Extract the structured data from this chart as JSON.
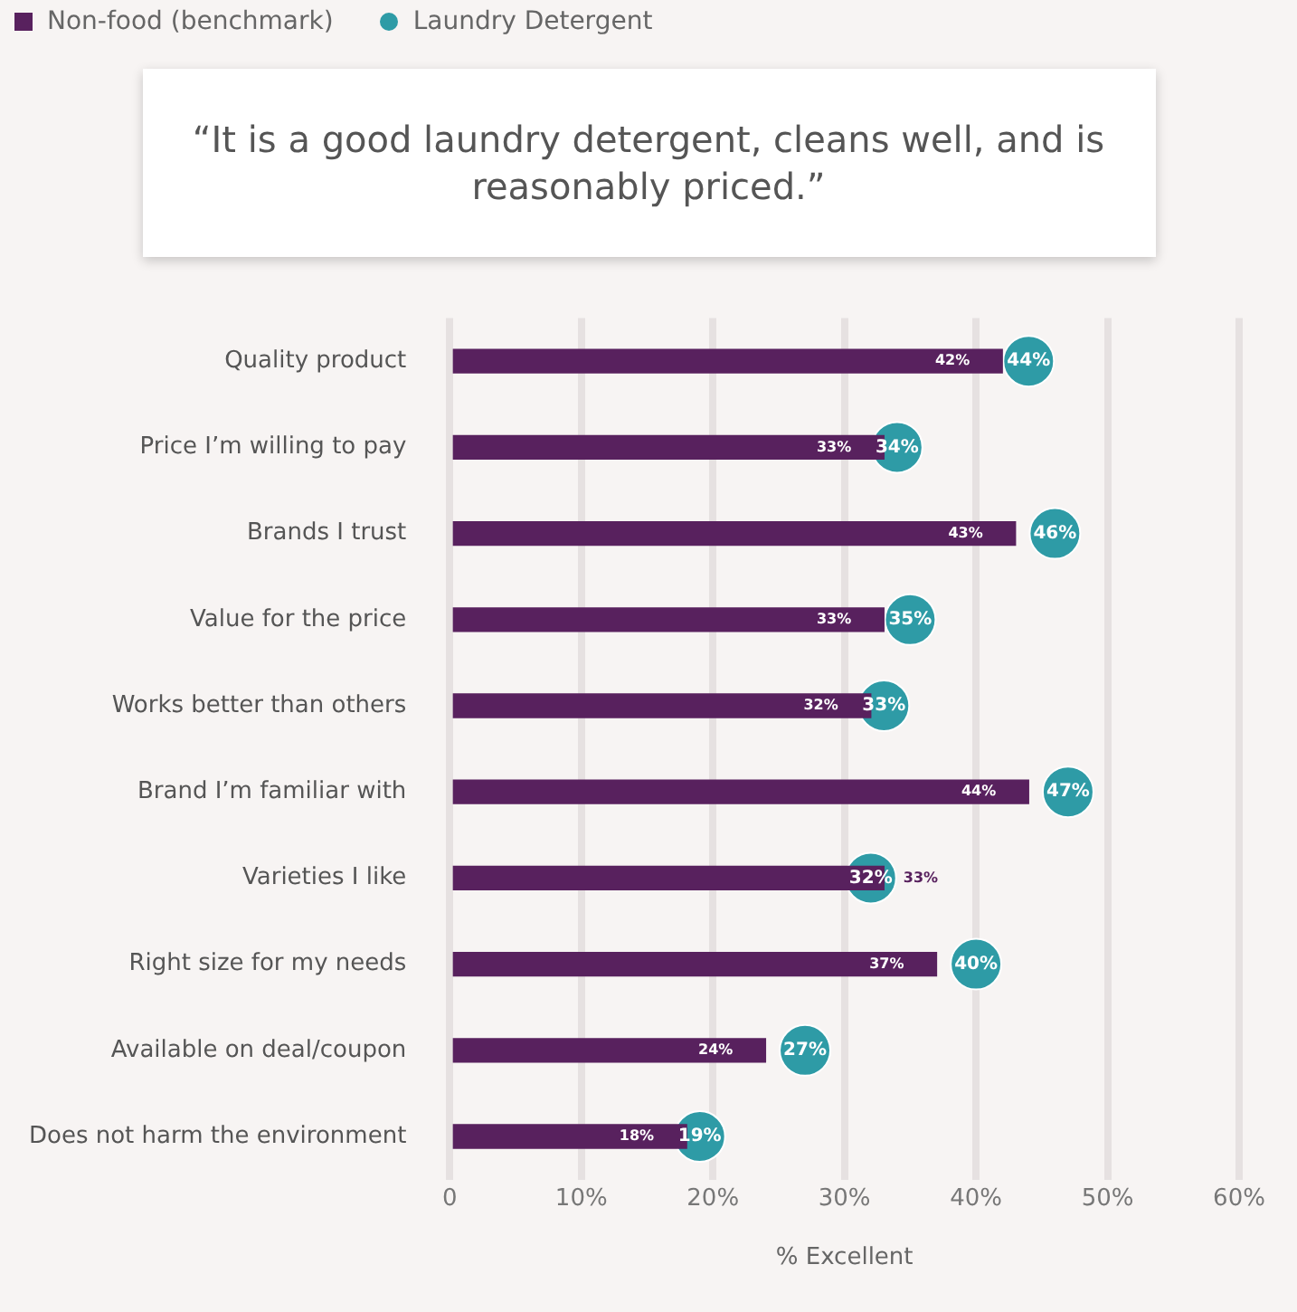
{
  "chart_data": {
    "type": "bar",
    "orientation": "horizontal",
    "title": "“It is a good laundry detergent, cleans well, and is reasonably priced.”",
    "xlabel": "% Excellent",
    "categories": [
      "Quality product",
      "Price I’m willing to pay",
      "Brands I trust",
      "Value for the price",
      "Works better than others",
      "Brand I’m familiar with",
      "Varieties I like",
      "Right size for my needs",
      "Available on deal/coupon",
      "Does not harm the environment"
    ],
    "series": [
      {
        "name": "Non-food (benchmark)",
        "color": "#58215e",
        "values": [
          42,
          33,
          43,
          33,
          32,
          44,
          33,
          37,
          24,
          18
        ],
        "value_labels": [
          "42%",
          "33%",
          "43%",
          "33%",
          "32%",
          "44%",
          "33%",
          "37%",
          "24%",
          "18%"
        ]
      },
      {
        "name": "Laundry Detergent",
        "type": "scatter",
        "color": "#2e9ba6",
        "values": [
          44,
          34,
          46,
          35,
          33,
          47,
          32,
          40,
          27,
          19
        ],
        "value_labels": [
          "44%",
          "34%",
          "46%",
          "35%",
          "33%",
          "47%",
          "32%",
          "40%",
          "27%",
          "19%"
        ]
      }
    ],
    "xlim": [
      0,
      60
    ],
    "xticks": [
      0,
      {
        "value": 10,
        "label": "10%"
      },
      {
        "value": 20,
        "label": "20%"
      },
      {
        "value": 30,
        "label": "30%"
      },
      {
        "value": 40,
        "label": "40%"
      },
      {
        "value": 50,
        "label": "50%"
      },
      {
        "value": 60,
        "label": "60%"
      }
    ],
    "grid": "x",
    "legend": "top left",
    "marker": "circle"
  }
}
